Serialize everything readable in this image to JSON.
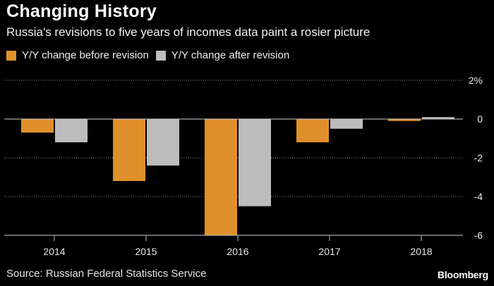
{
  "header": {
    "title": "Changing History",
    "subtitle": "Russia's revisions to five years of incomes data paint a rosier picture"
  },
  "legend": [
    {
      "label": "Y/Y change before revision",
      "color": "#e0902a"
    },
    {
      "label": "Y/Y change after revision",
      "color": "#bcbcbc"
    }
  ],
  "chart_data": {
    "type": "bar",
    "categories": [
      "2014",
      "2015",
      "2016",
      "2017",
      "2018"
    ],
    "series": [
      {
        "name": "Y/Y change before revision",
        "color": "#e0902a",
        "values": [
          -0.7,
          -3.2,
          -6.0,
          -1.2,
          -0.1
        ]
      },
      {
        "name": "Y/Y change after revision",
        "color": "#bcbcbc",
        "values": [
          -1.2,
          -2.4,
          -4.5,
          -0.5,
          0.1
        ]
      }
    ],
    "ylim": [
      -6,
      2
    ],
    "yticks": [
      2,
      0,
      -2,
      -4,
      -6
    ],
    "ytick_labels": [
      "2%",
      "0",
      "-2",
      "-4",
      "-6"
    ],
    "y_axis_position": "right",
    "grid": true
  },
  "footer": {
    "source": "Source: Russian Federal Statistics Service",
    "brand": "Bloomberg"
  }
}
